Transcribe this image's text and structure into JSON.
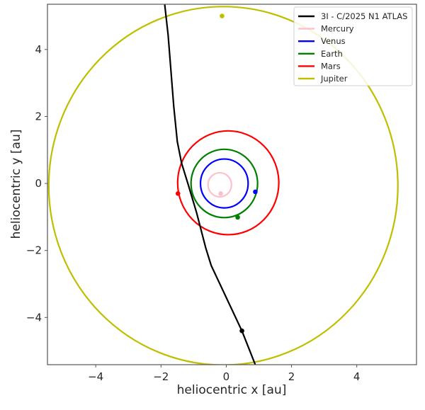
{
  "chart_data": {
    "type": "line",
    "title": "",
    "xlabel": "heliocentric x [au]",
    "ylabel": "heliocentric y [au]",
    "xlim": [
      -5.48,
      5.83
    ],
    "ylim": [
      -5.41,
      5.35
    ],
    "grid": false,
    "legend_position": "upper right",
    "xticks": [
      -4,
      -2,
      0,
      2,
      4
    ],
    "yticks": [
      -4,
      -2,
      0,
      2,
      4
    ],
    "xtick_labels": [
      "−4",
      "−2",
      "0",
      "2",
      "4"
    ],
    "ytick_labels": [
      "−4",
      "−2",
      "0",
      "2",
      "4"
    ],
    "series": [
      {
        "name": "3I - C/2025 N1 ATLAS",
        "color": "#000000",
        "kind": "trajectory",
        "x": [
          -1.89,
          -1.78,
          -1.61,
          -1.5,
          -1.37,
          -1.17,
          -0.91,
          -0.63,
          -0.46,
          0.48,
          0.89
        ],
        "y": [
          5.37,
          4.42,
          2.3,
          1.25,
          0.61,
          -0.02,
          -0.87,
          -1.92,
          -2.45,
          -4.4,
          -5.41
        ],
        "marker": {
          "x": 0.48,
          "y": -4.4
        }
      },
      {
        "name": "Mercury",
        "color": "#ffc0cb",
        "kind": "orbit",
        "center": [
          -0.2,
          -0.04
        ],
        "radius": 0.36,
        "marker": {
          "x": -0.17,
          "y": -0.3
        }
      },
      {
        "name": "Venus",
        "color": "#0000ff",
        "kind": "orbit",
        "center": [
          -0.06,
          0.0
        ],
        "radius": 0.73,
        "marker": {
          "x": 0.89,
          "y": -0.25
        }
      },
      {
        "name": "Earth",
        "color": "#008000",
        "kind": "orbit",
        "center": [
          -0.06,
          0.0
        ],
        "radius": 1.02,
        "marker": {
          "x": 0.35,
          "y": -1.01
        }
      },
      {
        "name": "Mars",
        "color": "#ff0000",
        "kind": "orbit",
        "center": [
          0.06,
          0.02
        ],
        "radius": 1.55,
        "marker": {
          "x": -1.48,
          "y": -0.3
        }
      },
      {
        "name": "Jupiter",
        "color": "#bfbf00",
        "kind": "orbit",
        "center": [
          -0.09,
          -0.07
        ],
        "radius": 5.35,
        "marker": {
          "x": -0.13,
          "y": 5.0
        }
      }
    ]
  },
  "legend": {
    "items": [
      {
        "label": "3I - C/2025 N1 ATLAS",
        "color": "#000000"
      },
      {
        "label": "Mercury",
        "color": "#ffc0cb"
      },
      {
        "label": "Venus",
        "color": "#0000ff"
      },
      {
        "label": "Earth",
        "color": "#008000"
      },
      {
        "label": "Mars",
        "color": "#ff0000"
      },
      {
        "label": "Jupiter",
        "color": "#bfbf00"
      }
    ]
  }
}
